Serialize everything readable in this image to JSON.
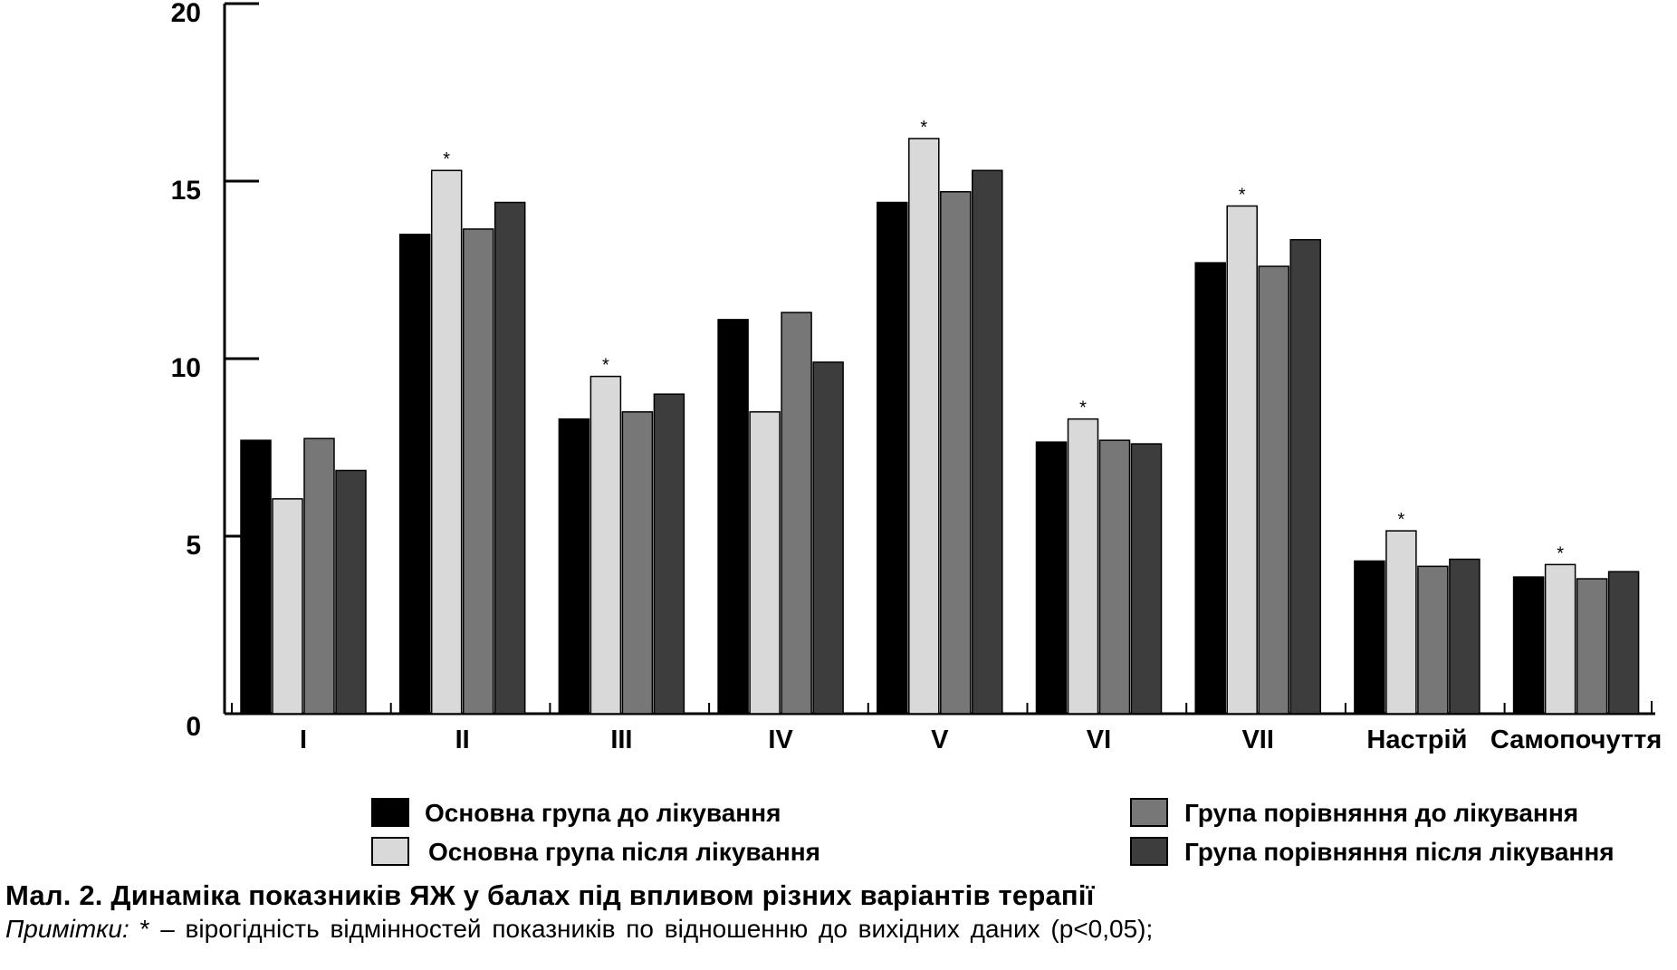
{
  "chart_data": {
    "type": "bar",
    "categories": [
      "I",
      "II",
      "III",
      "IV",
      "V",
      "VI",
      "VII",
      "Настрій",
      "Самопочуття"
    ],
    "series": [
      {
        "name": "Основна група до лікування",
        "color": "#000000",
        "values": [
          7.7,
          13.5,
          8.3,
          11.1,
          14.4,
          7.65,
          12.7,
          4.3,
          3.85
        ]
      },
      {
        "name": "Основна група після лікування",
        "color": "#d9d9d9",
        "values": [
          6.05,
          15.3,
          9.5,
          8.5,
          16.2,
          8.3,
          14.3,
          5.15,
          4.2
        ]
      },
      {
        "name": "Група порівняння до лікування",
        "color": "#777777",
        "values": [
          7.75,
          13.65,
          8.5,
          11.3,
          14.7,
          7.7,
          12.6,
          4.15,
          3.8
        ]
      },
      {
        "name": "Група порівняння після лікування",
        "color": "#3d3d3d",
        "values": [
          6.85,
          14.4,
          9.0,
          9.9,
          15.3,
          7.6,
          13.35,
          4.35,
          4.0
        ]
      }
    ],
    "significance_marker": "*",
    "significant_series": "Основна група після лікування",
    "significant_categories": [
      "II",
      "III",
      "V",
      "VI",
      "VII",
      "Настрій",
      "Самопочуття"
    ],
    "yticks": [
      "0",
      "5",
      "10",
      "15",
      "20"
    ],
    "ylim": [
      0,
      20
    ],
    "xlabel": "",
    "ylabel": "",
    "grid": false,
    "legend_position": "bottom"
  },
  "caption": {
    "title": "Мал. 2. Динаміка показників ЯЖ у балах під впливом різних варіантів терапії",
    "note_label": "Примітки:",
    "note_text": " * – вірогідність відмінностей показників по відношенню до вихідних даних (p<0,05);"
  }
}
